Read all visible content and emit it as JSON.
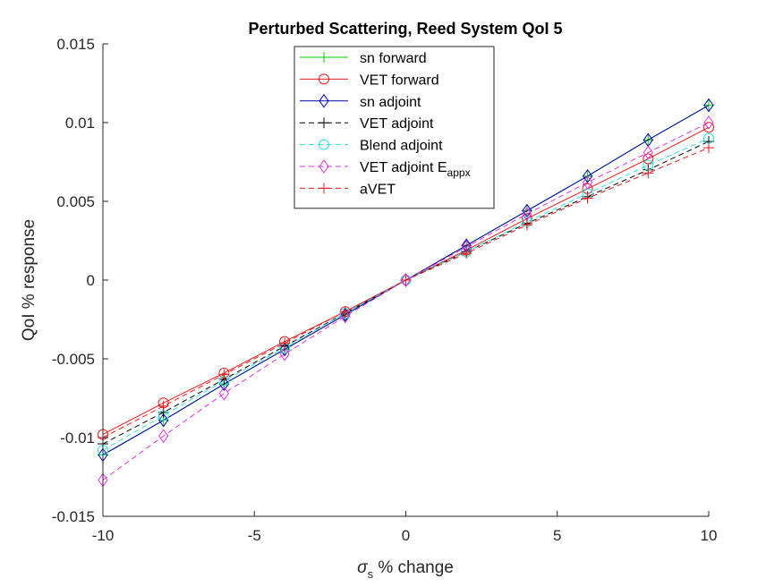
{
  "chart_data": {
    "type": "line",
    "title": "Perturbed Scattering, Reed System QoI 5",
    "xlabel_symbol": "σ",
    "xlabel_subscript": "s",
    "xlabel_rest": " % change",
    "ylabel": "QoI % response",
    "xlim": [
      -10,
      10
    ],
    "ylim": [
      -0.015,
      0.015
    ],
    "xticks": [
      -10,
      -5,
      0,
      5,
      10
    ],
    "xtick_labels": [
      "-10",
      "-5",
      "0",
      "5",
      "10"
    ],
    "yticks": [
      -0.015,
      -0.01,
      -0.005,
      0,
      0.005,
      0.01,
      0.015
    ],
    "ytick_labels": [
      "-0.015",
      "-0.01",
      "-0.005",
      "0",
      "0.005",
      "0.01",
      "0.015"
    ],
    "grid": false,
    "legend_location": "top-center",
    "x": [
      -10,
      -8,
      -6,
      -4,
      -2,
      0,
      2,
      4,
      6,
      8,
      10
    ],
    "series": [
      {
        "name": "sn forward",
        "color": "#00cc00",
        "dash": "solid",
        "marker": "plus",
        "values": [
          -0.0111,
          -0.0089,
          -0.0066,
          -0.0044,
          -0.0022,
          0,
          0.0022,
          0.0044,
          0.0066,
          0.0089,
          0.0111
        ]
      },
      {
        "name": "VET forward",
        "color": "#e31a1c",
        "dash": "solid",
        "marker": "circle",
        "values": [
          -0.0098,
          -0.0078,
          -0.0059,
          -0.0039,
          -0.002,
          0,
          0.0019,
          0.0039,
          0.0058,
          0.0077,
          0.0097
        ]
      },
      {
        "name": "sn adjoint",
        "color": "#0000a8",
        "dash": "solid",
        "marker": "diamond",
        "values": [
          -0.0111,
          -0.0089,
          -0.0066,
          -0.0044,
          -0.0022,
          0,
          0.0022,
          0.0044,
          0.0066,
          0.0089,
          0.0111
        ]
      },
      {
        "name": "VET adjoint",
        "color": "#000000",
        "dash": "dashed",
        "marker": "plus",
        "values": [
          -0.0104,
          -0.0084,
          -0.0063,
          -0.0042,
          -0.0021,
          0,
          0.0018,
          0.0036,
          0.0053,
          0.007,
          0.0088
        ]
      },
      {
        "name": "Blend adjoint",
        "color": "#33dddd",
        "dash": "dashed",
        "marker": "circle",
        "values": [
          -0.0108,
          -0.0086,
          -0.0064,
          -0.0043,
          -0.0021,
          0,
          0.0018,
          0.0037,
          0.0055,
          0.0073,
          0.009
        ]
      },
      {
        "name": "VET adjoint E",
        "name_subscript": "appx",
        "color": "#dd33dd",
        "dash": "dashed",
        "marker": "diamond",
        "values": [
          -0.0127,
          -0.0099,
          -0.0072,
          -0.0047,
          -0.0023,
          0,
          0.0021,
          0.0042,
          0.0062,
          0.0081,
          0.01
        ]
      },
      {
        "name": "aVET",
        "color": "#e31a1c",
        "dash": "dashed",
        "marker": "plus",
        "values": [
          -0.01,
          -0.008,
          -0.006,
          -0.004,
          -0.002,
          0,
          0.0017,
          0.0035,
          0.0052,
          0.0068,
          0.0084
        ]
      }
    ]
  }
}
